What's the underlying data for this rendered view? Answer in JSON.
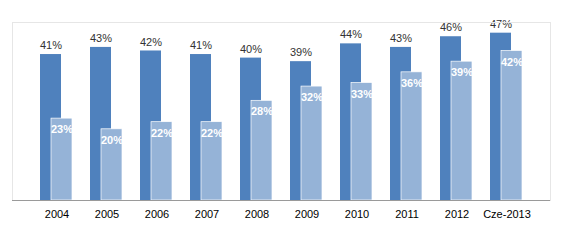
{
  "chart_data": {
    "type": "bar",
    "categories": [
      "2004",
      "2005",
      "2006",
      "2007",
      "2008",
      "2009",
      "2010",
      "2011",
      "2012",
      "Cze-2013"
    ],
    "series": [
      {
        "color": "#4F81BD",
        "values": [
          41,
          43,
          42,
          41,
          40,
          39,
          44,
          43,
          46,
          47
        ],
        "value_labels": [
          "41%",
          "43%",
          "42%",
          "41%",
          "40%",
          "39%",
          "44%",
          "43%",
          "46%",
          "47%"
        ]
      },
      {
        "color": "#95B3D7",
        "values": [
          23,
          20,
          22,
          22,
          28,
          32,
          33,
          36,
          39,
          42
        ],
        "value_labels": [
          "23%",
          "20%",
          "22%",
          "22%",
          "28%",
          "32%",
          "33%",
          "36%",
          "39%",
          "42%"
        ]
      }
    ],
    "ylim": [
      0,
      50
    ],
    "tick_labels": "x",
    "data_labels": true,
    "grid": false
  }
}
